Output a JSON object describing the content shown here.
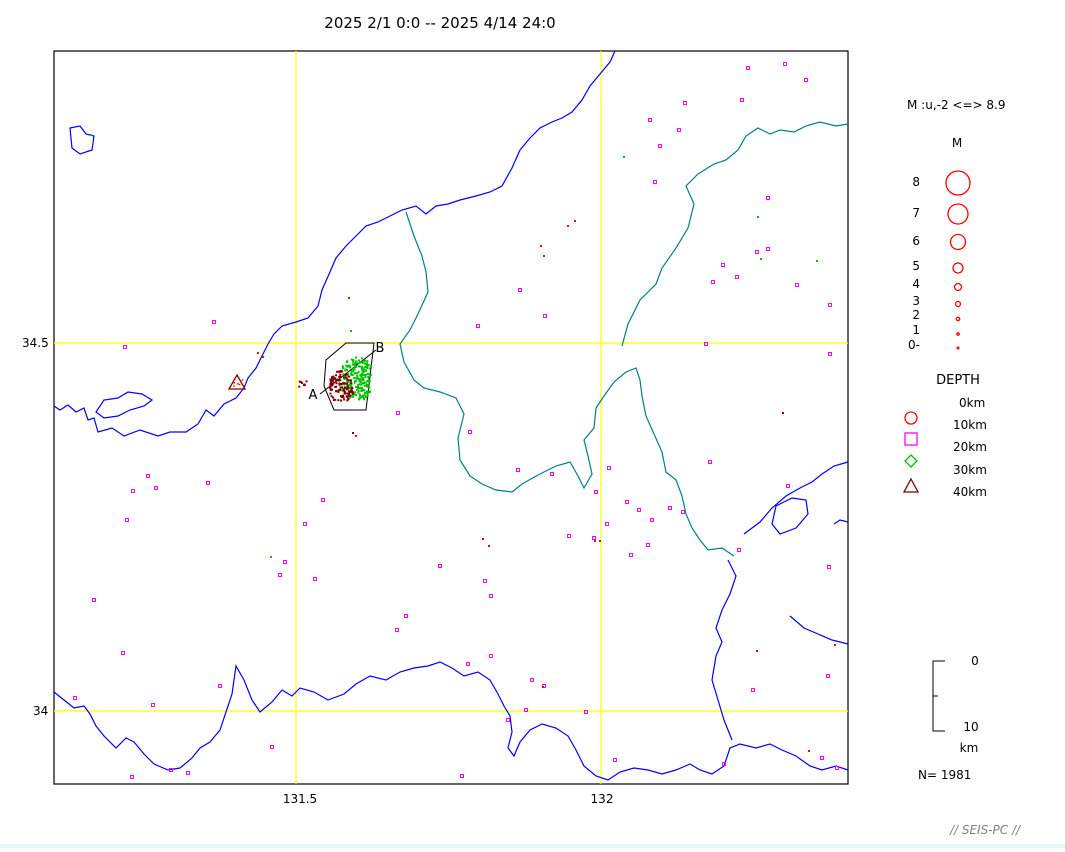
{
  "title": "2025 2/1 0:0 -- 2025 4/14 24:0",
  "axes": {
    "lat_ticks": [
      "34.5",
      "34"
    ],
    "lon_ticks": [
      "131.5",
      "132"
    ]
  },
  "section_labels": {
    "a": "A",
    "b": "B"
  },
  "legend": {
    "magnitude_range": "M :u,-2 <=> 8.9",
    "magnitude_header": "M",
    "magnitude_labels": [
      "8",
      "7",
      "6",
      "5",
      "4",
      "3",
      "2",
      "1",
      "0-"
    ],
    "depth_header": "DEPTH",
    "depth_labels": [
      "0km",
      "10km",
      "20km",
      "30km",
      "40km"
    ],
    "depth_colors": {
      "0km": "#ff0000",
      "10km": "#ff00ff",
      "20km": "#00c000",
      "30km": "#800000"
    },
    "scale_top": "0",
    "scale_bottom": "10",
    "scale_unit": "km",
    "event_count": "N= 1981"
  },
  "footer": "// SEIS-PC //",
  "colors": {
    "coastline": "#0000ff",
    "prefecture_border": "#008080",
    "gridline": "#ffff00",
    "frame": "#000000",
    "background": "#ffffff"
  }
}
